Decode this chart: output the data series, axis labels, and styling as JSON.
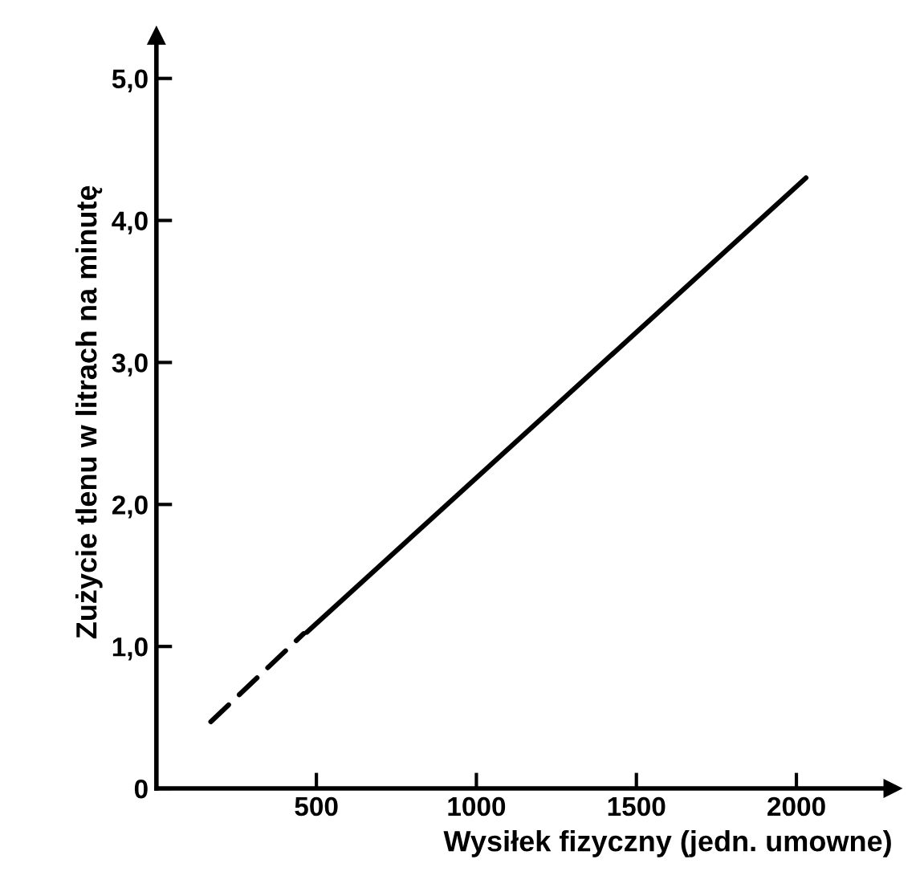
{
  "chart_data": {
    "type": "line",
    "xlabel": "Wysiłek fizyczny (jedn. umowne)",
    "ylabel": "Zużycie tlenu w litrach na minutę",
    "series": [
      {
        "color": "#000000",
        "line_style": "dashed",
        "x": [
          170,
          460
        ],
        "values": [
          0.47,
          1.09
        ]
      },
      {
        "color": "#000000",
        "line_style": "solid",
        "x": [
          470,
          2030
        ],
        "values": [
          1.1,
          4.3
        ]
      }
    ],
    "xlim": [
      0,
      2300
    ],
    "ylim": [
      0,
      5.3
    ],
    "xticks": [
      500,
      1000,
      1500,
      2000
    ],
    "yticks": [
      {
        "value": 0,
        "label": "0"
      },
      {
        "value": 1,
        "label": "1,0"
      },
      {
        "value": 2,
        "label": "2,0"
      },
      {
        "value": 3,
        "label": "3,0"
      },
      {
        "value": 4,
        "label": "4,0"
      },
      {
        "value": 5,
        "label": "5,0"
      }
    ],
    "grid": false,
    "legend": false,
    "marker": "none"
  }
}
